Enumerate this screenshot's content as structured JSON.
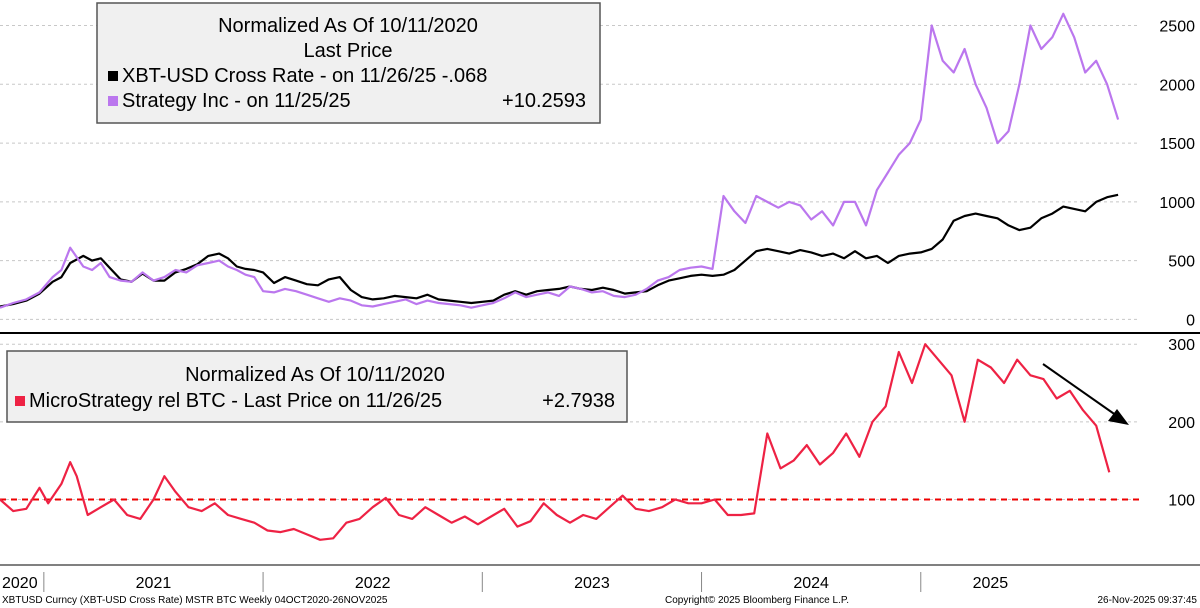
{
  "footer": {
    "left": "XBTUSD Curncy (XBT-USD Cross Rate) MSTR BTC Weekly 04OCT2020-26NOV2025",
    "center": "Copyright© 2025 Bloomberg Finance L.P.",
    "right": "26-Nov-2025 09:37:45"
  },
  "colors": {
    "background": "#ffffff",
    "grid": "#c8c8c8",
    "divider": "#000000",
    "bitcoin_line": "#000000",
    "strategy_line": "#bb77ee",
    "relative_line": "#ee2244",
    "reference_line": "#ee0000",
    "arrow": "#000000",
    "legend_fill": "#f0f0f0",
    "legend_border": "#555555"
  },
  "chart_data": [
    {
      "type": "line",
      "panel": "top",
      "legend": {
        "lines": [
          "Normalized As Of 10/11/2020",
          "Last Price"
        ],
        "entries": [
          {
            "series": "XBT-USD Cross Rate",
            "label": "XBT-USD Cross Rate -  on 11/26/25 -.068",
            "color": "#000000"
          },
          {
            "series": "Strategy Inc",
            "label": "Strategy Inc -  on 11/25/25",
            "value": "+10.2593",
            "color": "#bb77ee"
          }
        ]
      },
      "ylim": [
        -90,
        2700
      ],
      "yticks": [
        0,
        500,
        1000,
        1500,
        2000,
        2500
      ],
      "grid": true,
      "x_range": [
        2020.8,
        2026.0
      ],
      "series": [
        {
          "name": "XBT-USD Cross Rate",
          "color": "#000000",
          "x": [
            2020.8,
            2020.86,
            2020.92,
            2020.98,
            2021.04,
            2021.08,
            2021.12,
            2021.15,
            2021.18,
            2021.22,
            2021.26,
            2021.3,
            2021.35,
            2021.4,
            2021.45,
            2021.5,
            2021.55,
            2021.6,
            2021.65,
            2021.7,
            2021.75,
            2021.8,
            2021.84,
            2021.88,
            2021.92,
            2021.96,
            2022.0,
            2022.05,
            2022.1,
            2022.15,
            2022.2,
            2022.25,
            2022.3,
            2022.35,
            2022.4,
            2022.45,
            2022.5,
            2022.55,
            2022.6,
            2022.65,
            2022.7,
            2022.75,
            2022.8,
            2022.85,
            2022.9,
            2022.95,
            2023.0,
            2023.05,
            2023.1,
            2023.15,
            2023.2,
            2023.25,
            2023.3,
            2023.35,
            2023.4,
            2023.45,
            2023.5,
            2023.55,
            2023.6,
            2023.65,
            2023.7,
            2023.75,
            2023.8,
            2023.85,
            2023.9,
            2023.95,
            2024.0,
            2024.05,
            2024.1,
            2024.15,
            2024.2,
            2024.25,
            2024.3,
            2024.35,
            2024.4,
            2024.45,
            2024.5,
            2024.55,
            2024.6,
            2024.65,
            2024.7,
            2024.75,
            2024.8,
            2024.85,
            2024.9,
            2024.95,
            2025.0,
            2025.05,
            2025.1,
            2025.15,
            2025.2,
            2025.25,
            2025.3,
            2025.35,
            2025.4,
            2025.45,
            2025.5,
            2025.55,
            2025.6,
            2025.65,
            2025.7,
            2025.75,
            2025.8,
            2025.85,
            2025.9
          ],
          "values": [
            110,
            130,
            160,
            220,
            320,
            360,
            480,
            510,
            540,
            500,
            520,
            440,
            340,
            320,
            390,
            330,
            330,
            400,
            430,
            470,
            540,
            560,
            520,
            450,
            430,
            420,
            400,
            310,
            360,
            330,
            300,
            290,
            340,
            360,
            250,
            190,
            170,
            180,
            200,
            190,
            180,
            210,
            170,
            160,
            150,
            140,
            150,
            160,
            210,
            240,
            210,
            240,
            250,
            260,
            280,
            260,
            250,
            270,
            250,
            220,
            230,
            240,
            290,
            330,
            350,
            370,
            380,
            370,
            380,
            420,
            500,
            580,
            600,
            580,
            560,
            590,
            570,
            540,
            560,
            520,
            580,
            520,
            540,
            480,
            540,
            560,
            570,
            600,
            680,
            840,
            880,
            900,
            880,
            860,
            800,
            760,
            780,
            860,
            900,
            960,
            940,
            920,
            1000,
            1040,
            1060
          ]
        },
        {
          "name": "Strategy Inc",
          "color": "#bb77ee",
          "x": [
            2020.8,
            2020.86,
            2020.92,
            2020.98,
            2021.04,
            2021.08,
            2021.12,
            2021.15,
            2021.18,
            2021.22,
            2021.26,
            2021.3,
            2021.35,
            2021.4,
            2021.45,
            2021.5,
            2021.55,
            2021.6,
            2021.65,
            2021.7,
            2021.75,
            2021.8,
            2021.84,
            2021.88,
            2021.92,
            2021.96,
            2022.0,
            2022.05,
            2022.1,
            2022.15,
            2022.2,
            2022.25,
            2022.3,
            2022.35,
            2022.4,
            2022.45,
            2022.5,
            2022.55,
            2022.6,
            2022.65,
            2022.7,
            2022.75,
            2022.8,
            2022.85,
            2022.9,
            2022.95,
            2023.0,
            2023.05,
            2023.1,
            2023.15,
            2023.2,
            2023.25,
            2023.3,
            2023.35,
            2023.4,
            2023.45,
            2023.5,
            2023.55,
            2023.6,
            2023.65,
            2023.7,
            2023.75,
            2023.8,
            2023.85,
            2023.9,
            2023.95,
            2024.0,
            2024.05,
            2024.1,
            2024.15,
            2024.2,
            2024.25,
            2024.3,
            2024.35,
            2024.4,
            2024.45,
            2024.5,
            2024.55,
            2024.6,
            2024.65,
            2024.7,
            2024.75,
            2024.8,
            2024.85,
            2024.9,
            2024.95,
            2025.0,
            2025.05,
            2025.1,
            2025.15,
            2025.2,
            2025.25,
            2025.3,
            2025.35,
            2025.4,
            2025.45,
            2025.5,
            2025.55,
            2025.6,
            2025.65,
            2025.7,
            2025.75,
            2025.8,
            2025.85,
            2025.9
          ],
          "values": [
            100,
            140,
            170,
            230,
            360,
            420,
            610,
            530,
            450,
            420,
            480,
            360,
            330,
            320,
            400,
            330,
            360,
            420,
            400,
            460,
            480,
            500,
            450,
            420,
            380,
            360,
            240,
            230,
            260,
            240,
            210,
            180,
            150,
            180,
            160,
            120,
            110,
            130,
            150,
            170,
            130,
            160,
            140,
            130,
            120,
            100,
            120,
            140,
            180,
            230,
            190,
            210,
            230,
            200,
            280,
            260,
            230,
            240,
            200,
            190,
            210,
            260,
            330,
            360,
            420,
            440,
            450,
            430,
            1050,
            920,
            820,
            1050,
            1000,
            950,
            1000,
            970,
            850,
            920,
            800,
            1000,
            1000,
            800,
            1100,
            1250,
            1400,
            1500,
            1700,
            2500,
            2200,
            2100,
            2300,
            2000,
            1800,
            1500,
            1600,
            2000,
            2500,
            2300,
            2400,
            2600,
            2400,
            2100,
            2200,
            2000,
            1700
          ]
        }
      ]
    },
    {
      "type": "line",
      "panel": "bottom",
      "legend": {
        "lines": [
          "Normalized As Of 10/11/2020"
        ],
        "entries": [
          {
            "series": "MicroStrategy rel BTC",
            "label": "MicroStrategy rel BTC - Last Price on 11/26/25",
            "value": "+2.7938",
            "color": "#ee2244"
          }
        ]
      },
      "ylim": [
        22,
        308
      ],
      "yticks": [
        100,
        200,
        300
      ],
      "grid": true,
      "reference_line": 100,
      "x_range": [
        2020.8,
        2026.0
      ],
      "series": [
        {
          "name": "MicroStrategy rel BTC",
          "color": "#ee2244",
          "x": [
            2020.8,
            2020.86,
            2020.92,
            2020.98,
            2021.02,
            2021.08,
            2021.12,
            2021.15,
            2021.2,
            2021.26,
            2021.32,
            2021.38,
            2021.44,
            2021.5,
            2021.55,
            2021.6,
            2021.66,
            2021.72,
            2021.78,
            2021.84,
            2021.9,
            2021.96,
            2022.02,
            2022.08,
            2022.14,
            2022.2,
            2022.26,
            2022.32,
            2022.38,
            2022.44,
            2022.5,
            2022.56,
            2022.62,
            2022.68,
            2022.74,
            2022.8,
            2022.86,
            2022.92,
            2022.98,
            2023.04,
            2023.1,
            2023.16,
            2023.22,
            2023.28,
            2023.34,
            2023.4,
            2023.46,
            2023.52,
            2023.58,
            2023.64,
            2023.7,
            2023.76,
            2023.82,
            2023.88,
            2023.94,
            2024.0,
            2024.06,
            2024.12,
            2024.18,
            2024.24,
            2024.3,
            2024.36,
            2024.42,
            2024.48,
            2024.54,
            2024.6,
            2024.66,
            2024.72,
            2024.78,
            2024.84,
            2024.9,
            2024.96,
            2025.02,
            2025.08,
            2025.14,
            2025.2,
            2025.26,
            2025.32,
            2025.38,
            2025.44,
            2025.5,
            2025.56,
            2025.62,
            2025.68,
            2025.74,
            2025.8,
            2025.86
          ],
          "values": [
            100,
            85,
            88,
            115,
            95,
            120,
            148,
            130,
            80,
            90,
            100,
            80,
            75,
            100,
            130,
            110,
            90,
            85,
            95,
            80,
            75,
            70,
            60,
            58,
            62,
            55,
            48,
            50,
            70,
            75,
            90,
            102,
            80,
            75,
            90,
            80,
            70,
            78,
            68,
            78,
            88,
            65,
            72,
            95,
            80,
            70,
            80,
            75,
            90,
            105,
            88,
            85,
            90,
            100,
            95,
            95,
            100,
            80,
            80,
            82,
            185,
            140,
            150,
            170,
            145,
            160,
            185,
            155,
            200,
            220,
            290,
            250,
            300,
            280,
            260,
            200,
            280,
            270,
            250,
            280,
            260,
            255,
            230,
            240,
            215,
            195,
            135
          ]
        }
      ]
    }
  ],
  "x_axis": {
    "year_labels": [
      "2020",
      "2021",
      "2022",
      "2023",
      "2024",
      "2025"
    ]
  }
}
